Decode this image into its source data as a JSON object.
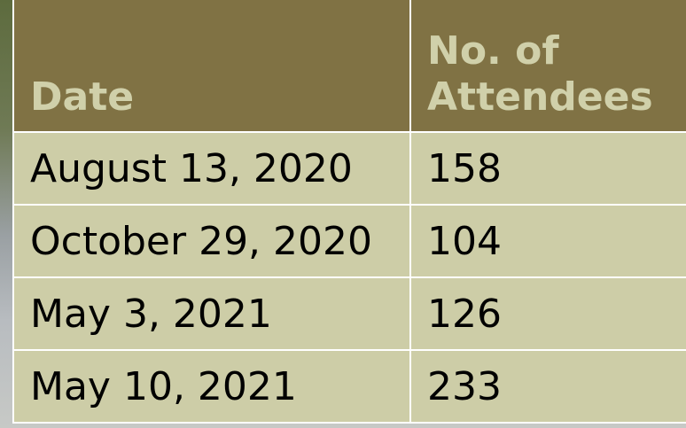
{
  "table": {
    "header": [
      "Date",
      "No. of Attendees"
    ],
    "rows": [
      [
        "August 13, 2020",
        158
      ],
      [
        "October 29, 2020",
        104
      ],
      [
        "May 3, 2021",
        126
      ],
      [
        "May 10, 2021",
        233
      ]
    ]
  }
}
